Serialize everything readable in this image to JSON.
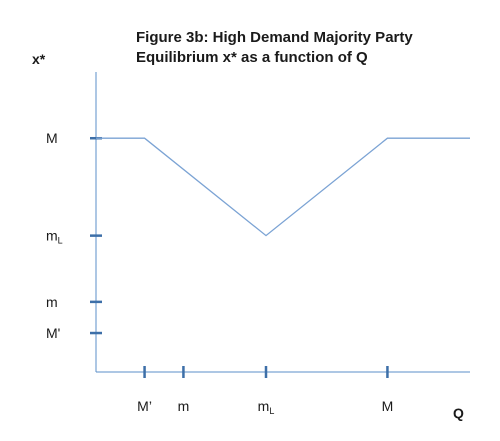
{
  "chart_data": {
    "type": "line",
    "title_line1": "Figure 3b: High Demand Majority Party",
    "title_line2": "Equilibrium x* as a function of Q",
    "xlabel": "Q",
    "ylabel": "x*",
    "x_ticks": [
      {
        "base": "M’",
        "sub": "",
        "value": 1
      },
      {
        "base": "m",
        "sub": "",
        "value": 1.8
      },
      {
        "base": "m",
        "sub": "L",
        "value": 3.5
      },
      {
        "base": "M",
        "sub": "",
        "value": 6
      }
    ],
    "y_ticks": [
      {
        "base": "M",
        "sub": "",
        "value": 6
      },
      {
        "base": "m",
        "sub": "L",
        "value": 3.5
      },
      {
        "base": "m",
        "sub": "",
        "value": 1.8
      },
      {
        "base": "M'",
        "sub": "",
        "value": 1
      }
    ],
    "xlim": [
      0,
      7.7
    ],
    "ylim": [
      0,
      7.7
    ],
    "series": [
      {
        "values": [
          {
            "x": 0,
            "y": 6
          },
          {
            "x": 1,
            "y": 6
          },
          {
            "x": 3.5,
            "y": 3.5
          },
          {
            "x": 6,
            "y": 6
          },
          {
            "x": 7.7,
            "y": 6
          }
        ]
      }
    ],
    "colors": {
      "line": "#7ba3d4",
      "axis": "#5b8fc9",
      "tick": "#3d6fa8"
    },
    "grid": false,
    "legend": "none"
  }
}
